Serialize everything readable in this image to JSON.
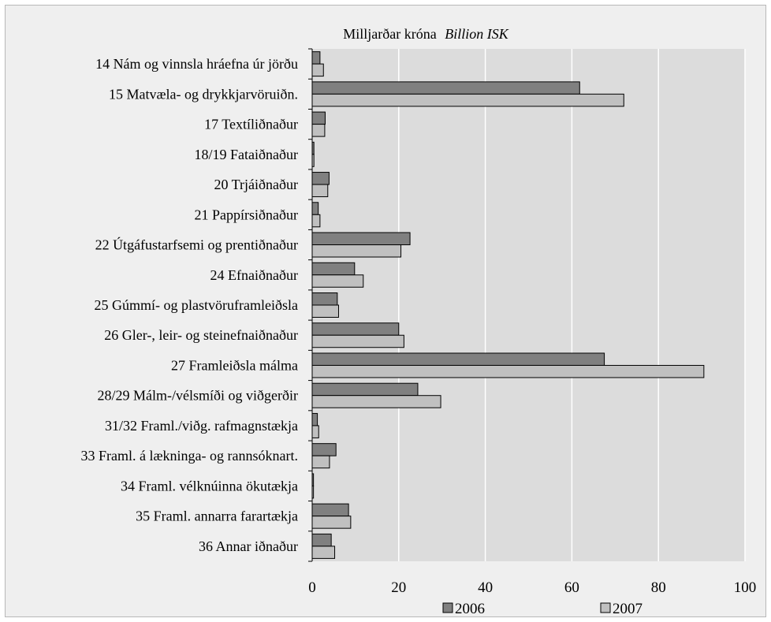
{
  "chart_data": {
    "type": "bar",
    "orientation": "horizontal",
    "title_parts": [
      "Milljarðar króna",
      "Billion ISK"
    ],
    "categories": [
      "14 Nám og vinnsla hráefna úr jörðu",
      "15 Matvæla- og drykkjarvöruiðn.",
      "17 Textíliðnaður",
      "18/19 Fataiðnaður",
      "20 Trjáiðnaður",
      "21 Pappírsiðnaður",
      "22 Útgáfustarfsemi og prentiðnaður",
      "24 Efnaiðnaður",
      "25 Gúmmí- og plastvöruframleiðsla",
      "26 Gler-, leir- og steinefnaiðnaður",
      "27 Framleiðsla málma",
      "28/29 Málm-/vélsmíði og viðgerðir",
      "31/32 Framl./viðg. rafmagnstækja",
      "33 Framl. á lækninga- og rannsóknart.",
      "34 Framl. vélknúinna ökutækja",
      "35 Framl. annarra farartækja",
      "36 Annar iðnaður"
    ],
    "series": [
      {
        "name": "2006",
        "color": "#808080",
        "values": [
          1.8,
          61.8,
          3.0,
          0.4,
          3.9,
          1.4,
          22.6,
          9.8,
          5.8,
          20.0,
          67.5,
          24.4,
          1.2,
          5.5,
          0.3,
          8.4,
          4.4
        ]
      },
      {
        "name": "2007",
        "color": "#c0c0c0",
        "values": [
          2.6,
          72.0,
          2.9,
          0.4,
          3.6,
          1.8,
          20.5,
          11.8,
          6.1,
          21.2,
          90.5,
          29.7,
          1.5,
          4.0,
          0.3,
          8.9,
          5.2
        ]
      }
    ],
    "xlim": [
      0,
      100
    ],
    "xticks": [
      "0",
      "20",
      "40",
      "60",
      "80",
      "100"
    ],
    "grid": true,
    "legend_position": "bottom"
  }
}
